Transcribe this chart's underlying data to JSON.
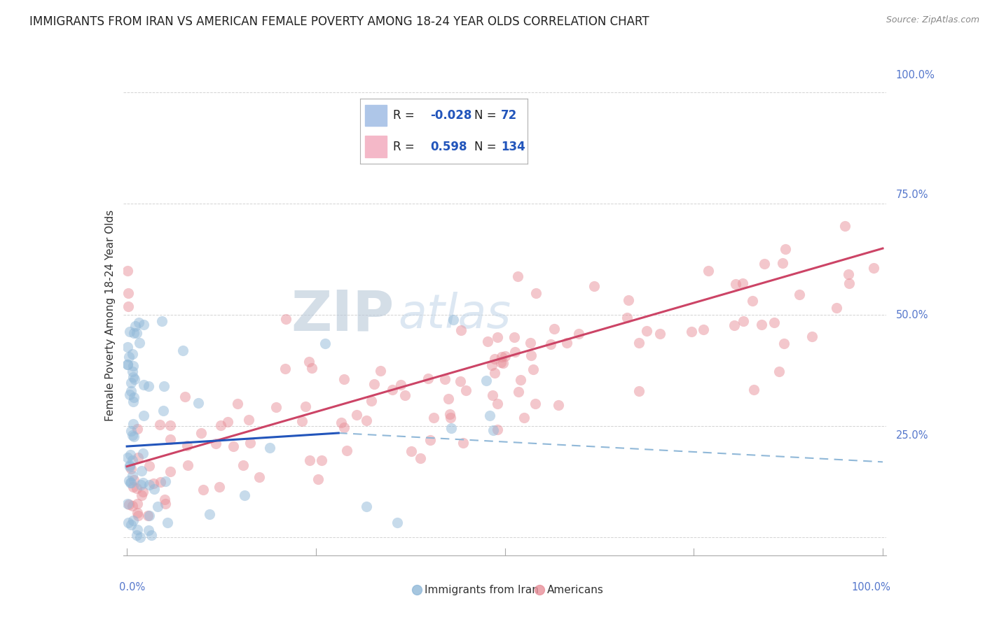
{
  "title": "IMMIGRANTS FROM IRAN VS AMERICAN FEMALE POVERTY AMONG 18-24 YEAR OLDS CORRELATION CHART",
  "source": "Source: ZipAtlas.com",
  "ylabel": "Female Poverty Among 18-24 Year Olds",
  "background_color": "#ffffff",
  "grid_color": "#c8c8c8",
  "scatter_blue_color": "#90b8d8",
  "scatter_pink_color": "#e8909a",
  "line_blue_solid_color": "#2255bb",
  "line_pink_solid_color": "#cc4466",
  "line_blue_dash_color": "#90b8d8",
  "watermark_color": "#c8d8e8",
  "legend_blue_box": "#aec6e8",
  "legend_pink_box": "#f4b8c8",
  "legend_R1": "-0.028",
  "legend_N1": "72",
  "legend_R2": "0.598",
  "legend_N2": "134",
  "label_blue": "Immigrants from Iran",
  "label_pink": "Americans",
  "title_fontsize": 12,
  "source_fontsize": 9,
  "axis_label_color": "#5577cc",
  "text_color": "#333333"
}
